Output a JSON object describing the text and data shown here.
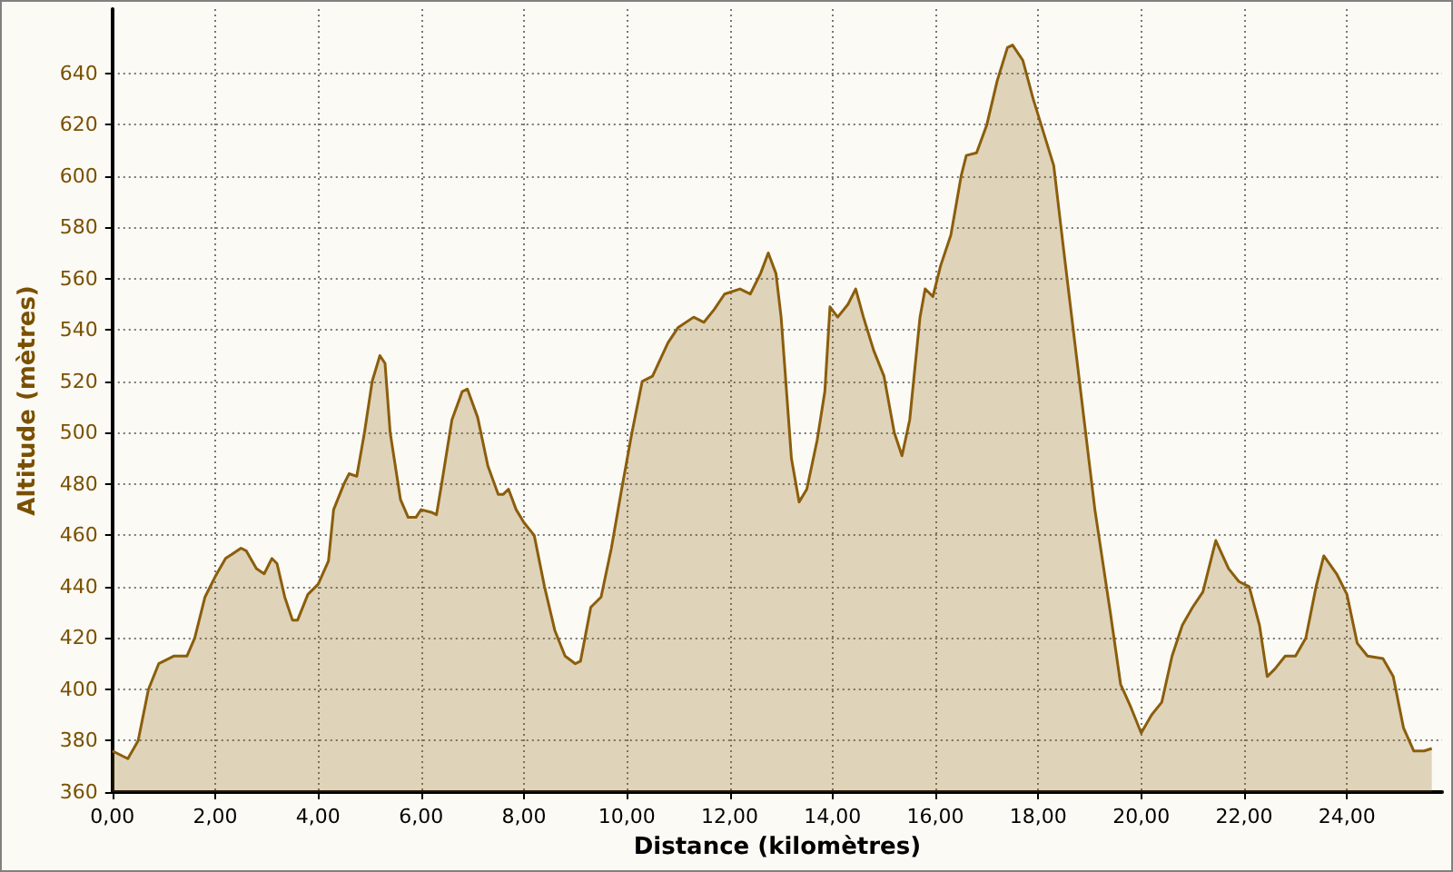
{
  "chart_data": {
    "type": "area",
    "xlabel": "Distance (kilomètres)",
    "ylabel": "Altitude (mètres)",
    "grid": true,
    "marker": "none",
    "line_style": "solid",
    "xlim": [
      0,
      25.85
    ],
    "ylim": [
      360,
      665
    ],
    "xticks": [
      {
        "value": 0,
        "label": "0,00"
      },
      {
        "value": 2,
        "label": "2,00"
      },
      {
        "value": 4,
        "label": "4,00"
      },
      {
        "value": 6,
        "label": "6,00"
      },
      {
        "value": 8,
        "label": "8,00"
      },
      {
        "value": 10,
        "label": "10,00"
      },
      {
        "value": 12,
        "label": "12,00"
      },
      {
        "value": 14,
        "label": "14,00"
      },
      {
        "value": 16,
        "label": "16,00"
      },
      {
        "value": 18,
        "label": "18,00"
      },
      {
        "value": 20,
        "label": "20,00"
      },
      {
        "value": 22,
        "label": "22,00"
      },
      {
        "value": 24,
        "label": "24,00"
      }
    ],
    "yticks": [
      360,
      380,
      400,
      420,
      440,
      460,
      480,
      500,
      520,
      540,
      560,
      580,
      600,
      620,
      640
    ],
    "series": [
      {
        "color": "#8b5e0c",
        "x": [
          0,
          0.3,
          0.5,
          0.7,
          0.9,
          1.2,
          1.45,
          1.6,
          1.8,
          2.0,
          2.2,
          2.5,
          2.6,
          2.8,
          2.95,
          3.1,
          3.2,
          3.35,
          3.5,
          3.6,
          3.8,
          4.0,
          4.2,
          4.3,
          4.5,
          4.6,
          4.75,
          4.9,
          5.05,
          5.2,
          5.3,
          5.4,
          5.6,
          5.75,
          5.9,
          6.0,
          6.2,
          6.3,
          6.4,
          6.6,
          6.8,
          6.9,
          7.1,
          7.3,
          7.5,
          7.6,
          7.7,
          7.85,
          8.0,
          8.2,
          8.4,
          8.6,
          8.8,
          9.0,
          9.1,
          9.3,
          9.5,
          9.7,
          9.9,
          10.1,
          10.3,
          10.5,
          10.8,
          11.0,
          11.3,
          11.5,
          11.7,
          11.9,
          12.2,
          12.4,
          12.6,
          12.75,
          12.9,
          13.0,
          13.2,
          13.35,
          13.5,
          13.7,
          13.85,
          13.95,
          14.1,
          14.3,
          14.45,
          14.6,
          14.8,
          15.0,
          15.2,
          15.35,
          15.5,
          15.7,
          15.8,
          15.95,
          16.1,
          16.3,
          16.5,
          16.6,
          16.8,
          17.0,
          17.2,
          17.4,
          17.5,
          17.7,
          17.9,
          18.1,
          18.3,
          18.5,
          18.8,
          19.1,
          19.4,
          19.6,
          19.8,
          20.0,
          20.2,
          20.4,
          20.6,
          20.8,
          21.0,
          21.2,
          21.45,
          21.7,
          21.9,
          22.1,
          22.3,
          22.45,
          22.6,
          22.8,
          23.0,
          23.2,
          23.4,
          23.55,
          23.8,
          24.0,
          24.2,
          24.4,
          24.7,
          24.9,
          25.1,
          25.3,
          25.5,
          25.65
        ],
        "values": [
          376,
          373,
          380,
          400,
          410,
          413,
          413,
          420,
          436,
          444,
          451,
          455,
          454,
          447,
          445,
          451,
          449,
          436,
          427,
          427,
          437,
          441,
          450,
          470,
          480,
          484,
          483,
          500,
          520,
          530,
          527,
          500,
          474,
          467,
          467,
          470,
          469,
          468,
          480,
          505,
          516,
          517,
          506,
          487,
          476,
          476,
          478,
          470,
          465,
          460,
          440,
          423,
          413,
          410,
          411,
          432,
          436,
          455,
          478,
          500,
          520,
          522,
          535,
          541,
          545,
          543,
          548,
          554,
          556,
          554,
          562,
          570,
          562,
          545,
          490,
          473,
          478,
          497,
          516,
          549,
          545,
          550,
          556,
          545,
          532,
          522,
          500,
          491,
          505,
          545,
          556,
          553,
          565,
          577,
          600,
          608,
          609,
          620,
          637,
          650,
          651,
          645,
          630,
          617,
          604,
          570,
          520,
          470,
          430,
          402,
          393,
          383,
          390,
          395,
          413,
          425,
          432,
          438,
          458,
          447,
          442,
          440,
          425,
          405,
          408,
          413,
          413,
          420,
          440,
          452,
          445,
          437,
          418,
          413,
          412,
          405,
          385,
          376,
          376,
          377
        ]
      }
    ]
  }
}
